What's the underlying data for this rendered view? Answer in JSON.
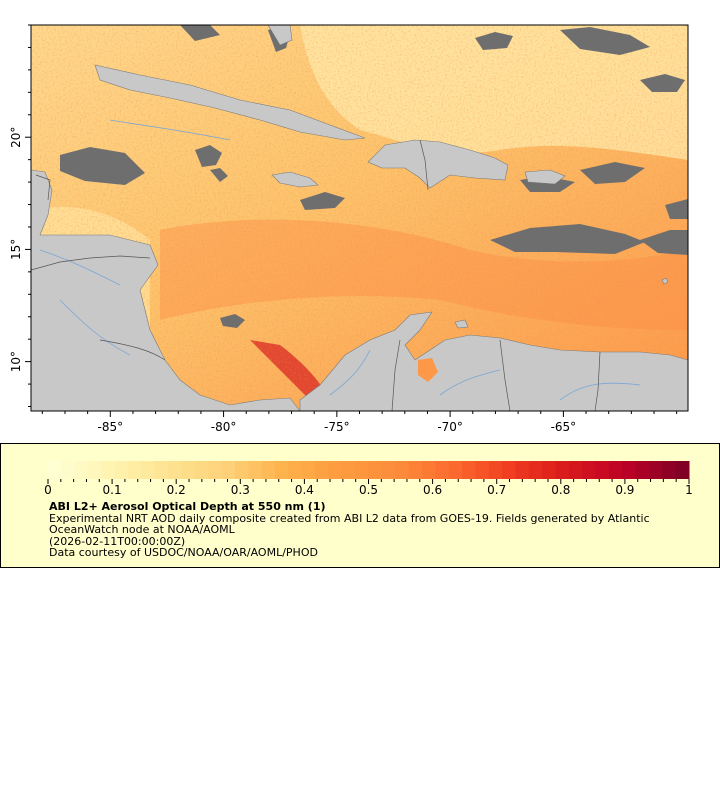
{
  "map": {
    "lon_range": [
      -88.5,
      -59.5
    ],
    "lat_range": [
      7.8,
      25
    ],
    "x_ticks": [
      -85,
      -80,
      -75,
      -70,
      -65
    ],
    "y_ticks": [
      10,
      15,
      20
    ],
    "x_tick_labels": [
      "-85°",
      "-80°",
      "-75°",
      "-70°",
      "-65°"
    ],
    "y_tick_labels": [
      "10°",
      "15°",
      "20°"
    ],
    "land_color": "#c8c8c8",
    "nodata_color": "#6e6e6e",
    "river_color": "#7aa6d6",
    "border_color": "#555555"
  },
  "colorbar": {
    "min": 0,
    "max": 1,
    "tick_values": [
      0,
      0.1,
      0.2,
      0.3,
      0.4,
      0.5,
      0.6,
      0.7,
      0.8,
      0.9,
      1
    ],
    "tick_labels": [
      "0",
      "0.1",
      "0.2",
      "0.3",
      "0.4",
      "0.5",
      "0.6",
      "0.7",
      "0.8",
      "0.9",
      "1"
    ],
    "colors": [
      "#ffffd4",
      "#fff3b0",
      "#fee391",
      "#fed27a",
      "#feb24c",
      "#fd9b3e",
      "#fd8d3c",
      "#fc6a2e",
      "#f03b20",
      "#d7191c",
      "#bd0026",
      "#800026"
    ]
  },
  "legend": {
    "title": "ABI L2+ Aerosol Optical Depth at 550 nm (1)",
    "description": "Experimental NRT AOD daily composite created from ABI L2 data from GOES-19. Fields generated by Atlantic OceanWatch node at NOAA/AOML",
    "date": "(2026-02-11T00:00:00Z)",
    "credit": "Data courtesy of USDOC/NOAA/OAR/AOML/PHOD"
  }
}
